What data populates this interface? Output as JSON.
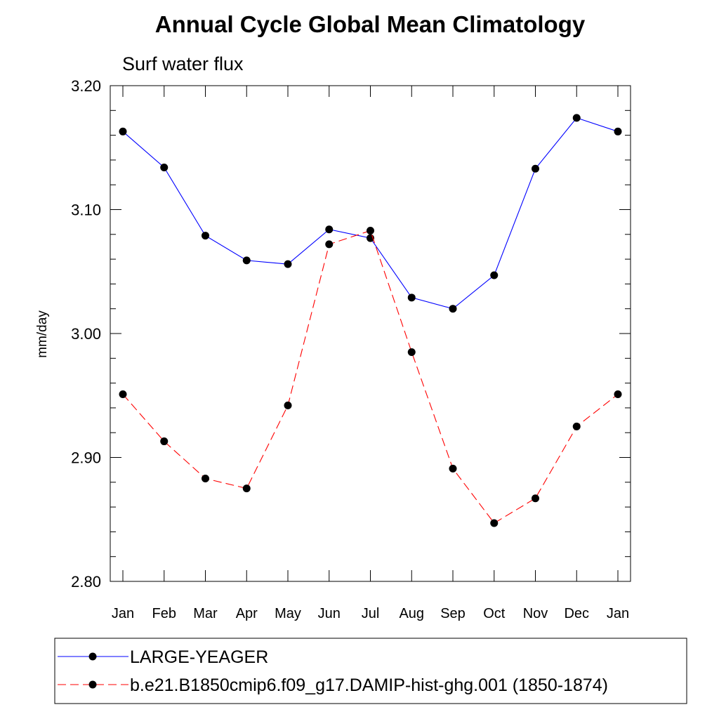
{
  "chart_data": {
    "type": "line",
    "title": "Annual Cycle Global Mean Climatology",
    "subtitle": "Surf water flux",
    "ylabel": "mm/day",
    "xlabel": "",
    "categories": [
      "Jan",
      "Feb",
      "Mar",
      "Apr",
      "May",
      "Jun",
      "Jul",
      "Aug",
      "Sep",
      "Oct",
      "Nov",
      "Dec",
      "Jan"
    ],
    "ylim": [
      2.8,
      3.2
    ],
    "yticks": [
      "2.80",
      "2.90",
      "3.00",
      "3.10",
      "3.20"
    ],
    "grid": false,
    "legend_position": "bottom",
    "series": [
      {
        "name": "LARGE-YEAGER",
        "color": "#0000ff",
        "line_style": "solid",
        "marker": "filled-circle",
        "values": [
          3.163,
          3.134,
          3.079,
          3.059,
          3.056,
          3.084,
          3.077,
          3.029,
          3.02,
          3.047,
          3.133,
          3.174,
          3.163
        ]
      },
      {
        "name": "b.e21.B1850cmip6.f09_g17.DAMIP-hist-ghg.001 (1850-1874)",
        "color": "#ff0000",
        "line_style": "dashed",
        "marker": "filled-circle",
        "values": [
          2.951,
          2.913,
          2.883,
          2.875,
          2.942,
          3.072,
          3.083,
          2.985,
          2.891,
          2.847,
          2.867,
          2.925,
          2.951
        ]
      }
    ]
  }
}
